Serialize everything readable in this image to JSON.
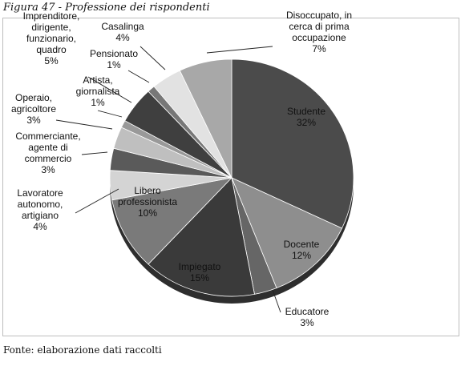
{
  "figure_title": "Figura 47 - Professione dei rispondenti",
  "source_note": "Fonte: elaborazione dati raccolti",
  "chart_data": {
    "type": "pie",
    "title": "",
    "slices": [
      {
        "label_lines": [
          "Studente"
        ],
        "pct_text": "32%",
        "value": 32,
        "color": "#4b4b4b"
      },
      {
        "label_lines": [
          "Docente"
        ],
        "pct_text": "12%",
        "value": 12,
        "color": "#8e8e8e"
      },
      {
        "label_lines": [
          "Educatore"
        ],
        "pct_text": "3%",
        "value": 3,
        "color": "#666666"
      },
      {
        "label_lines": [
          "Impiegato"
        ],
        "pct_text": "15%",
        "value": 15,
        "color": "#3a3a3a"
      },
      {
        "label_lines": [
          "Libero",
          "professionista"
        ],
        "pct_text": "10%",
        "value": 10,
        "color": "#7a7a7a"
      },
      {
        "label_lines": [
          "Lavoratore",
          "autonomo,",
          "artigiano"
        ],
        "pct_text": "4%",
        "value": 4,
        "color": "#d4d4d4"
      },
      {
        "label_lines": [
          "Commerciante,",
          "agente di",
          "commercio"
        ],
        "pct_text": "3%",
        "value": 3,
        "color": "#5a5a5a"
      },
      {
        "label_lines": [
          "Operaio,",
          "agricoltore"
        ],
        "pct_text": "3%",
        "value": 3,
        "color": "#bfbfbf"
      },
      {
        "label_lines": [
          "Artista,",
          "giornalista"
        ],
        "pct_text": "1%",
        "value": 1,
        "color": "#999999"
      },
      {
        "label_lines": [
          "Imprenditore,",
          "dirigente,",
          "funzionario,",
          "quadro"
        ],
        "pct_text": "5%",
        "value": 5,
        "color": "#3f3f3f"
      },
      {
        "label_lines": [
          "Pensionato"
        ],
        "pct_text": "1%",
        "value": 1,
        "color": "#777777"
      },
      {
        "label_lines": [
          "Casalinga"
        ],
        "pct_text": "4%",
        "value": 4,
        "color": "#e2e2e2"
      },
      {
        "label_lines": [
          "Disoccupato, in",
          "cerca di prima",
          "occupazione"
        ],
        "pct_text": "7%",
        "value": 7,
        "color": "#a8a8a8"
      }
    ]
  }
}
